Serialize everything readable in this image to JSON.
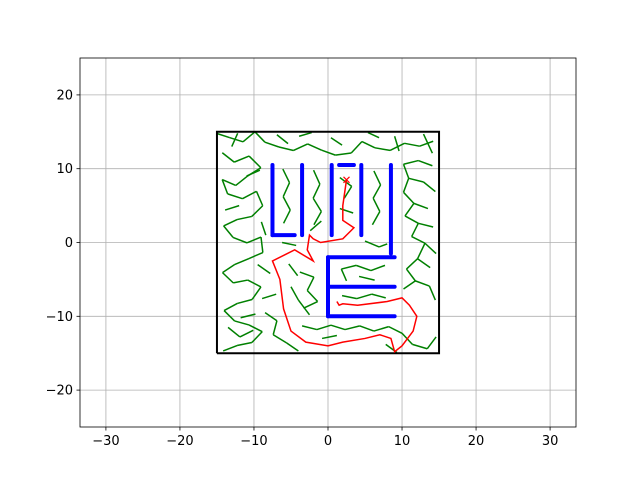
{
  "chart_data": {
    "type": "scatter",
    "title": "",
    "xlabel": "",
    "ylabel": "",
    "xlim": [
      -33.5,
      33.5
    ],
    "ylim": [
      -25,
      25
    ],
    "grid": true,
    "x_ticks": [
      -30,
      -20,
      -10,
      0,
      10,
      20,
      30
    ],
    "y_ticks": [
      -20,
      -10,
      0,
      10,
      20
    ],
    "x_tick_labels": [
      "−30",
      "−20",
      "−10",
      "0",
      "10",
      "20",
      "30"
    ],
    "y_tick_labels": [
      "−20",
      "−10",
      "0",
      "10",
      "20"
    ],
    "boundary": [
      [
        -15,
        -15
      ],
      [
        15,
        -15
      ],
      [
        15,
        15
      ],
      [
        -15,
        15
      ],
      [
        -15,
        -15
      ]
    ],
    "obstacles": [
      [
        [
          -7.5,
          10.5
        ],
        [
          -7.5,
          1
        ]
      ],
      [
        [
          -7.5,
          1
        ],
        [
          -4.5,
          1
        ]
      ],
      [
        [
          -3.5,
          10.5
        ],
        [
          -3.5,
          1
        ]
      ],
      [
        [
          0.5,
          10.5
        ],
        [
          0.5,
          1
        ]
      ],
      [
        [
          1.5,
          10.5
        ],
        [
          3.5,
          10.5
        ]
      ],
      [
        [
          4.5,
          10.5
        ],
        [
          4.5,
          1
        ]
      ],
      [
        [
          8.5,
          10.5
        ],
        [
          8.5,
          -1.5
        ]
      ],
      [
        [
          9,
          -2
        ],
        [
          0,
          -2
        ]
      ],
      [
        [
          0,
          -2
        ],
        [
          0,
          -10
        ]
      ],
      [
        [
          0,
          -6
        ],
        [
          9,
          -6
        ]
      ],
      [
        [
          0,
          -10
        ],
        [
          9,
          -10
        ]
      ]
    ],
    "path": [
      [
        2.5,
        8.5
      ],
      [
        2,
        5
      ],
      [
        2,
        3
      ],
      [
        3.5,
        2
      ],
      [
        2.5,
        1
      ],
      [
        2,
        0.5
      ],
      [
        -1,
        0
      ],
      [
        -2,
        0.5
      ],
      [
        -2.5,
        1
      ],
      [
        -2.8,
        -1
      ],
      [
        -2,
        -2.5
      ],
      [
        -4.5,
        -1
      ],
      [
        -7.5,
        -2.5
      ],
      [
        -6.5,
        -5
      ],
      [
        -6,
        -9
      ],
      [
        -5,
        -12
      ],
      [
        -3,
        -13.5
      ],
      [
        0,
        -14
      ],
      [
        2,
        -13.5
      ],
      [
        5,
        -13
      ],
      [
        7,
        -12.5
      ],
      [
        8.5,
        -13
      ],
      [
        9,
        -14.8
      ],
      [
        10,
        -14
      ],
      [
        11.5,
        -12
      ],
      [
        12,
        -10
      ],
      [
        11,
        -8.5
      ],
      [
        10,
        -7.5
      ],
      [
        8,
        -8
      ],
      [
        4,
        -8.5
      ],
      [
        2,
        -8.3
      ],
      [
        1.5,
        -8.5
      ],
      [
        1.2,
        -8
      ]
    ],
    "path_start": [
      2.5,
      8.5
    ],
    "colors": {
      "boundary": "#000000",
      "obstacles": "#0000ff",
      "path": "#ff0000",
      "tree": "#008000",
      "grid": "#b0b0b0"
    },
    "tree_edges": [
      [
        [
          -13.31,
          14.22
        ],
        [
          -11.48,
          13.64
        ]
      ],
      [
        [
          -13.31,
          14.22
        ],
        [
          -15,
          14.77
        ]
      ],
      [
        [
          -11.48,
          13.64
        ],
        [
          -9.87,
          15
        ]
      ],
      [
        [
          -9.87,
          15
        ],
        [
          -8.52,
          13.59
        ]
      ],
      [
        [
          -8.52,
          13.59
        ],
        [
          -6.63,
          12.94
        ]
      ],
      [
        [
          -6.63,
          12.94
        ],
        [
          -4.66,
          12.47
        ]
      ],
      [
        [
          -4.66,
          12.47
        ],
        [
          -2.75,
          13.35
        ]
      ],
      [
        [
          -2.75,
          13.35
        ],
        [
          -0.9,
          12.53
        ]
      ],
      [
        [
          -0.9,
          12.53
        ],
        [
          0.99,
          11.84
        ]
      ],
      [
        [
          0.99,
          11.84
        ],
        [
          3.14,
          12.13
        ]
      ],
      [
        [
          3.14,
          12.13
        ],
        [
          4.59,
          13.68
        ]
      ],
      [
        [
          4.59,
          13.68
        ],
        [
          6.34,
          12.83
        ]
      ],
      [
        [
          6.34,
          12.83
        ],
        [
          8.38,
          12.48
        ]
      ],
      [
        [
          8.38,
          12.48
        ],
        [
          10.33,
          13.44
        ]
      ],
      [
        [
          10.33,
          13.44
        ],
        [
          12.37,
          13.05
        ]
      ],
      [
        [
          12.37,
          13.05
        ],
        [
          14.21,
          13.72
        ]
      ],
      [
        [
          -14.28,
          12.16
        ],
        [
          -12.67,
          10.89
        ]
      ],
      [
        [
          -12.67,
          10.89
        ],
        [
          -10.66,
          11.71
        ]
      ],
      [
        [
          -10.66,
          11.71
        ],
        [
          -9.07,
          10.13
        ]
      ],
      [
        [
          -9.07,
          10.13
        ],
        [
          -10.85,
          9.02
        ]
      ],
      [
        [
          -10.85,
          9.02
        ],
        [
          -12.46,
          7.73
        ]
      ],
      [
        [
          -12.46,
          7.73
        ],
        [
          -14.29,
          8.53
        ]
      ],
      [
        [
          -14.29,
          8.53
        ],
        [
          -13.56,
          6.59
        ]
      ],
      [
        [
          -13.56,
          6.59
        ],
        [
          -11.55,
          5.94
        ]
      ],
      [
        [
          -11.55,
          5.94
        ],
        [
          -9.66,
          6.94
        ]
      ],
      [
        [
          -9.66,
          6.94
        ],
        [
          -8.82,
          4.98
        ]
      ],
      [
        [
          -8.82,
          4.98
        ],
        [
          -10.29,
          3.53
        ]
      ],
      [
        [
          -10.29,
          3.53
        ],
        [
          -12.28,
          3.11
        ]
      ],
      [
        [
          -12.28,
          3.11
        ],
        [
          -14.1,
          2.25
        ]
      ],
      [
        [
          -14.1,
          2.25
        ],
        [
          -12.83,
          0.69
        ]
      ],
      [
        [
          -12.83,
          0.69
        ],
        [
          -10.94,
          -0.05
        ]
      ],
      [
        [
          -10.94,
          -0.05
        ],
        [
          -9.05,
          0.74
        ]
      ],
      [
        [
          -9.05,
          0.74
        ],
        [
          -8.8,
          -1.36
        ]
      ],
      [
        [
          -8.8,
          -1.36
        ],
        [
          -10.67,
          -2.17
        ]
      ],
      [
        [
          -10.67,
          -2.17
        ],
        [
          -12.58,
          -2.97
        ]
      ],
      [
        [
          -12.58,
          -2.97
        ],
        [
          -14.25,
          -4.08
        ]
      ],
      [
        [
          -14.25,
          -4.08
        ],
        [
          -12.8,
          -5.47
        ]
      ],
      [
        [
          -12.8,
          -5.47
        ],
        [
          -10.84,
          -5.09
        ]
      ],
      [
        [
          -10.84,
          -5.09
        ],
        [
          -9.06,
          -6.02
        ]
      ],
      [
        [
          -9.06,
          -6.02
        ],
        [
          -10.25,
          -7.72
        ]
      ],
      [
        [
          -10.25,
          -7.72
        ],
        [
          -12.25,
          -8.26
        ]
      ],
      [
        [
          -12.25,
          -8.26
        ],
        [
          -14.04,
          -9.22
        ]
      ],
      [
        [
          -14.04,
          -9.22
        ],
        [
          -12.62,
          -10.63
        ]
      ],
      [
        [
          -12.62,
          -10.63
        ],
        [
          -10.68,
          -11.17
        ]
      ],
      [
        [
          -10.68,
          -11.17
        ],
        [
          -8.88,
          -12.08
        ]
      ],
      [
        [
          -8.88,
          -12.08
        ],
        [
          -10.28,
          -13.55
        ]
      ],
      [
        [
          -10.28,
          -13.55
        ],
        [
          -12.28,
          -13.96
        ]
      ],
      [
        [
          -12.28,
          -13.96
        ],
        [
          -14.16,
          -14.69
        ]
      ],
      [
        [
          -6.1,
          9.95
        ],
        [
          -5.2,
          8.1
        ]
      ],
      [
        [
          -5.2,
          8.1
        ],
        [
          -6.05,
          6.2
        ]
      ],
      [
        [
          -6.05,
          6.2
        ],
        [
          -5.1,
          4.4
        ]
      ],
      [
        [
          -5.1,
          4.4
        ],
        [
          -6.0,
          2.6
        ]
      ],
      [
        [
          -1.95,
          9.8
        ],
        [
          -1.1,
          7.9
        ]
      ],
      [
        [
          -1.1,
          7.9
        ],
        [
          -2.0,
          6.0
        ]
      ],
      [
        [
          -2.0,
          6.0
        ],
        [
          -0.9,
          4.2
        ]
      ],
      [
        [
          -0.9,
          4.2
        ],
        [
          -1.9,
          2.4
        ]
      ],
      [
        [
          6.2,
          9.7
        ],
        [
          7.1,
          7.8
        ]
      ],
      [
        [
          7.1,
          7.8
        ],
        [
          6.1,
          6.0
        ]
      ],
      [
        [
          6.1,
          6.0
        ],
        [
          7.0,
          4.2
        ]
      ],
      [
        [
          7.0,
          4.2
        ],
        [
          6.0,
          2.4
        ]
      ],
      [
        [
          10.2,
          10.6
        ],
        [
          12.2,
          11.1
        ]
      ],
      [
        [
          12.2,
          11.1
        ],
        [
          14.1,
          10.4
        ]
      ],
      [
        [
          10.2,
          10.6
        ],
        [
          10.9,
          8.7
        ]
      ],
      [
        [
          10.9,
          8.7
        ],
        [
          12.9,
          8.2
        ]
      ],
      [
        [
          12.9,
          8.2
        ],
        [
          14.5,
          6.9
        ]
      ],
      [
        [
          10.9,
          8.7
        ],
        [
          10.2,
          6.8
        ]
      ],
      [
        [
          10.2,
          6.8
        ],
        [
          11.6,
          5.3
        ]
      ],
      [
        [
          11.6,
          5.3
        ],
        [
          13.5,
          4.6
        ]
      ],
      [
        [
          11.6,
          5.3
        ],
        [
          10.4,
          3.6
        ]
      ],
      [
        [
          10.4,
          3.6
        ],
        [
          12.2,
          2.6
        ]
      ],
      [
        [
          12.2,
          2.6
        ],
        [
          14.2,
          2.1
        ]
      ],
      [
        [
          12.2,
          2.6
        ],
        [
          11.3,
          0.8
        ]
      ],
      [
        [
          11.3,
          0.8
        ],
        [
          13.1,
          -0.1
        ]
      ],
      [
        [
          13.1,
          -0.1
        ],
        [
          14.6,
          -1.5
        ]
      ],
      [
        [
          13.1,
          -0.1
        ],
        [
          12.1,
          -2.2
        ]
      ],
      [
        [
          12.1,
          -2.2
        ],
        [
          13.8,
          -3.4
        ]
      ],
      [
        [
          12.1,
          -2.2
        ],
        [
          10.6,
          -3.6
        ]
      ],
      [
        [
          10.6,
          -3.6
        ],
        [
          11.8,
          -5.2
        ]
      ],
      [
        [
          11.8,
          -5.2
        ],
        [
          13.7,
          -5.9
        ]
      ],
      [
        [
          13.7,
          -5.9
        ],
        [
          14.5,
          -7.8
        ]
      ],
      [
        [
          11.8,
          -5.2
        ],
        [
          10.2,
          -6.3
        ]
      ],
      [
        [
          1.8,
          -3.6
        ],
        [
          3.8,
          -3.1
        ]
      ],
      [
        [
          3.8,
          -3.1
        ],
        [
          5.8,
          -3.8
        ]
      ],
      [
        [
          5.8,
          -3.8
        ],
        [
          7.7,
          -3.1
        ]
      ],
      [
        [
          1.8,
          -3.6
        ],
        [
          2.5,
          -5.2
        ]
      ],
      [
        [
          4.2,
          -4.6
        ],
        [
          6.3,
          -5.1
        ]
      ],
      [
        [
          1.9,
          -7.2
        ],
        [
          3.9,
          -7.6
        ]
      ],
      [
        [
          3.9,
          -7.6
        ],
        [
          5.9,
          -7.0
        ]
      ],
      [
        [
          5.9,
          -7.0
        ],
        [
          7.8,
          -7.5
        ]
      ],
      [
        [
          -13.5,
          -11.5
        ],
        [
          -11.9,
          -12.8
        ]
      ],
      [
        [
          -11.9,
          -12.8
        ],
        [
          -10.1,
          -11.9
        ]
      ],
      [
        [
          -8.5,
          -9.5
        ],
        [
          -6.9,
          -10.6
        ]
      ],
      [
        [
          -6.9,
          -10.6
        ],
        [
          -7.4,
          -12.5
        ]
      ],
      [
        [
          -7.4,
          -12.5
        ],
        [
          -5.6,
          -13.6
        ]
      ],
      [
        [
          -5.6,
          -13.6
        ],
        [
          -4.0,
          -14.7
        ]
      ],
      [
        [
          -3.5,
          -11.3
        ],
        [
          -1.5,
          -11.8
        ]
      ],
      [
        [
          -1.5,
          -11.8
        ],
        [
          0.4,
          -11.2
        ]
      ],
      [
        [
          0.4,
          -11.2
        ],
        [
          2.3,
          -11.8
        ]
      ],
      [
        [
          2.3,
          -11.8
        ],
        [
          4.3,
          -11.3
        ]
      ],
      [
        [
          4.3,
          -11.3
        ],
        [
          6.2,
          -12.0
        ]
      ],
      [
        [
          6.2,
          -12.0
        ],
        [
          8.2,
          -11.4
        ]
      ],
      [
        [
          8.2,
          -11.4
        ],
        [
          10.0,
          -12.3
        ]
      ],
      [
        [
          10.0,
          -12.3
        ],
        [
          11.4,
          -13.8
        ]
      ],
      [
        [
          11.4,
          -13.8
        ],
        [
          13.4,
          -14.4
        ]
      ],
      [
        [
          13.4,
          -14.4
        ],
        [
          14.6,
          -12.8
        ]
      ],
      [
        [
          -3.8,
          -4.0
        ],
        [
          -1.9,
          -4.7
        ]
      ],
      [
        [
          -1.9,
          -4.7
        ],
        [
          -2.8,
          -6.5
        ]
      ],
      [
        [
          -2.8,
          -6.5
        ],
        [
          -1.4,
          -8.0
        ]
      ],
      [
        [
          -1.4,
          -8.0
        ],
        [
          -3.3,
          -8.9
        ]
      ],
      [
        [
          -5.3,
          -2.9
        ],
        [
          -4.1,
          -4.5
        ]
      ],
      [
        [
          -9.5,
          -3.0
        ],
        [
          -7.8,
          -4.2
        ]
      ],
      [
        [
          -9.0,
          2.8
        ],
        [
          -8.4,
          1.0
        ]
      ],
      [
        [
          -6.2,
          0.0
        ],
        [
          -4.3,
          -0.4
        ]
      ],
      [
        [
          -2.4,
          1.6
        ],
        [
          -0.9,
          2.9
        ]
      ],
      [
        [
          -13.9,
          4.4
        ],
        [
          -12.0,
          5.0
        ]
      ],
      [
        [
          -11.0,
          9.0
        ],
        [
          -9.2,
          9.8
        ]
      ],
      [
        [
          -13.0,
          13.0
        ],
        [
          -12.2,
          14.8
        ]
      ],
      [
        [
          -6.9,
          14.6
        ],
        [
          -5.4,
          13.4
        ]
      ],
      [
        [
          -3.9,
          14.4
        ],
        [
          -2.2,
          14.9
        ]
      ],
      [
        [
          0.4,
          14.2
        ],
        [
          1.9,
          13.2
        ]
      ],
      [
        [
          5.4,
          14.9
        ],
        [
          6.9,
          14.2
        ]
      ],
      [
        [
          9.0,
          14.4
        ],
        [
          9.6,
          12.4
        ]
      ],
      [
        [
          12.9,
          14.7
        ],
        [
          14.1,
          12.1
        ]
      ],
      [
        [
          1.6,
          8.8
        ],
        [
          3.2,
          7.6
        ]
      ],
      [
        [
          3.2,
          7.6
        ],
        [
          2.2,
          6.0
        ]
      ],
      [
        [
          1.6,
          4.6
        ],
        [
          3.4,
          4.0
        ]
      ],
      [
        [
          5.0,
          0.2
        ],
        [
          6.9,
          -0.6
        ]
      ],
      [
        [
          6.9,
          -0.6
        ],
        [
          8.0,
          -0.2
        ]
      ],
      [
        [
          -7.0,
          -7.0
        ],
        [
          -8.9,
          -7.6
        ]
      ],
      [
        [
          -9.8,
          -9.7
        ],
        [
          -11.8,
          -10.2
        ]
      ],
      [
        [
          -5.0,
          -6.0
        ],
        [
          -4.0,
          -7.8
        ]
      ],
      [
        [
          -4.0,
          -7.8
        ],
        [
          -2.5,
          -9.8
        ]
      ],
      [
        [
          -0.8,
          -13.0
        ],
        [
          1.2,
          -12.6
        ]
      ],
      [
        [
          7.8,
          -13.8
        ],
        [
          9.3,
          -14.9
        ]
      ]
    ]
  }
}
